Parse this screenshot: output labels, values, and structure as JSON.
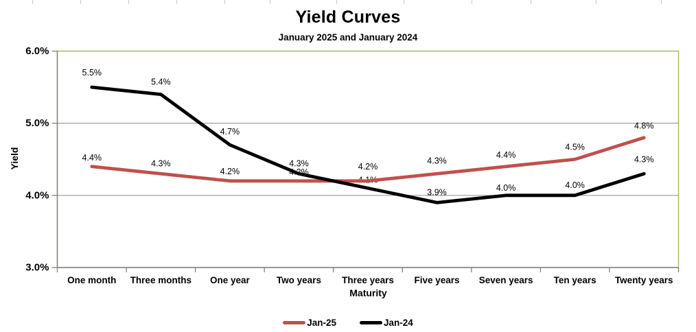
{
  "chart_data": {
    "type": "line",
    "title": "Yield Curves",
    "subtitle": "January 2025 and January 2024",
    "xlabel": "Maturity",
    "ylabel": "Yield",
    "categories": [
      "One month",
      "Three months",
      "One year",
      "Two years",
      "Three years",
      "Five years",
      "Seven years",
      "Ten years",
      "Twenty years"
    ],
    "series": [
      {
        "name": "Jan-25",
        "color": "#C0504D",
        "values": [
          4.4,
          4.3,
          4.2,
          4.2,
          4.2,
          4.3,
          4.4,
          4.5,
          4.8
        ],
        "labels": [
          "4.4%",
          "4.3%",
          "4.2%",
          "4.2%",
          "4.2%",
          "4.3%",
          "4.4%",
          "4.5%",
          "4.8%"
        ]
      },
      {
        "name": "Jan-24",
        "color": "#000000",
        "values": [
          5.5,
          5.4,
          4.7,
          4.3,
          4.1,
          3.9,
          4.0,
          4.0,
          4.3
        ],
        "labels": [
          "5.5%",
          "5.4%",
          "4.7%",
          "4.3%",
          "4.1%",
          "3.9%",
          "4.0%",
          "4.0%",
          "4.3%"
        ]
      }
    ],
    "ylim": [
      3.0,
      6.0
    ],
    "yticks": [
      {
        "value": 6.0,
        "label": "6.0%"
      },
      {
        "value": 5.0,
        "label": "5.0%"
      },
      {
        "value": 4.0,
        "label": "4.0%"
      },
      {
        "value": 3.0,
        "label": "3.0%"
      }
    ],
    "grid": "horizontal",
    "legend_position": "bottom",
    "plot_border_color": "#9BBB59",
    "axis_color": "#808080",
    "gridline_color": "#8C8C8C",
    "label_color": "#000000"
  }
}
